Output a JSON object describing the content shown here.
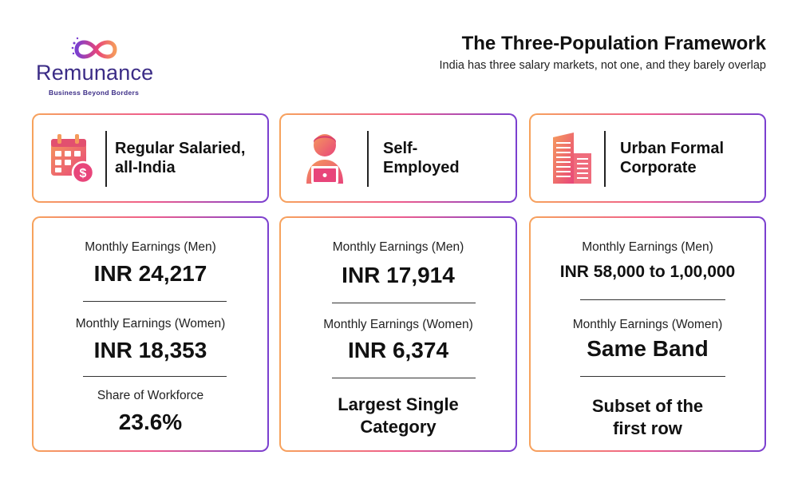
{
  "brand": {
    "name": "Remunance",
    "tagline": "Business Beyond Borders",
    "logo_icon": "infinity-icon",
    "colors": {
      "primary": "#3b2c86",
      "orange": "#f7a35c",
      "pink": "#ef5d8c",
      "purple": "#7a3fd0"
    }
  },
  "header": {
    "title": "The Three-Population Framework",
    "subtitle": "India has three salary markets, not one, and they barely overlap"
  },
  "columns": [
    {
      "icon": "calendar-currency-icon",
      "label": "Regular Salaried, all-India",
      "men_label": "Monthly Earnings (Men)",
      "men_value": "INR 24,217",
      "women_label": "Monthly Earnings (Women)",
      "women_value": "INR 18,353",
      "third_label": "Share of Workforce",
      "third_value": "23.6%"
    },
    {
      "icon": "person-laptop-icon",
      "label": "Self-Employed",
      "men_label": "Monthly Earnings (Men)",
      "men_value": "INR 17,914",
      "women_label": "Monthly Earnings (Women)",
      "women_value": "INR 6,374",
      "third_value": "Largest Single Category"
    },
    {
      "icon": "office-buildings-icon",
      "label": "Urban Formal Corporate",
      "men_label": "Monthly Earnings (Men)",
      "men_value": "INR 58,000 to 1,00,000",
      "women_label": "Monthly Earnings (Women)",
      "women_value": "Same Band",
      "third_value": "Subset of the first row"
    }
  ]
}
